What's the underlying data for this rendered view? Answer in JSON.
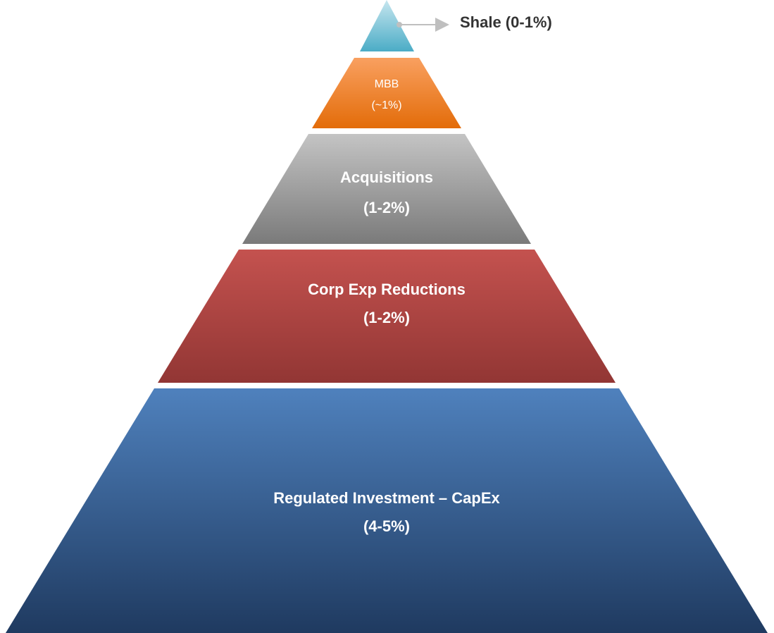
{
  "levels": [
    {
      "name": "Shale (0-1%)"
    },
    {
      "name": "MBB",
      "value": "(~1%)"
    },
    {
      "name": "Acquisitions",
      "value": "(1-2%)"
    },
    {
      "name": "Corp Exp Reductions",
      "value": "(1-2%)"
    },
    {
      "name": "Regulated Investment – CapEx",
      "value": "(4-5%)"
    }
  ]
}
